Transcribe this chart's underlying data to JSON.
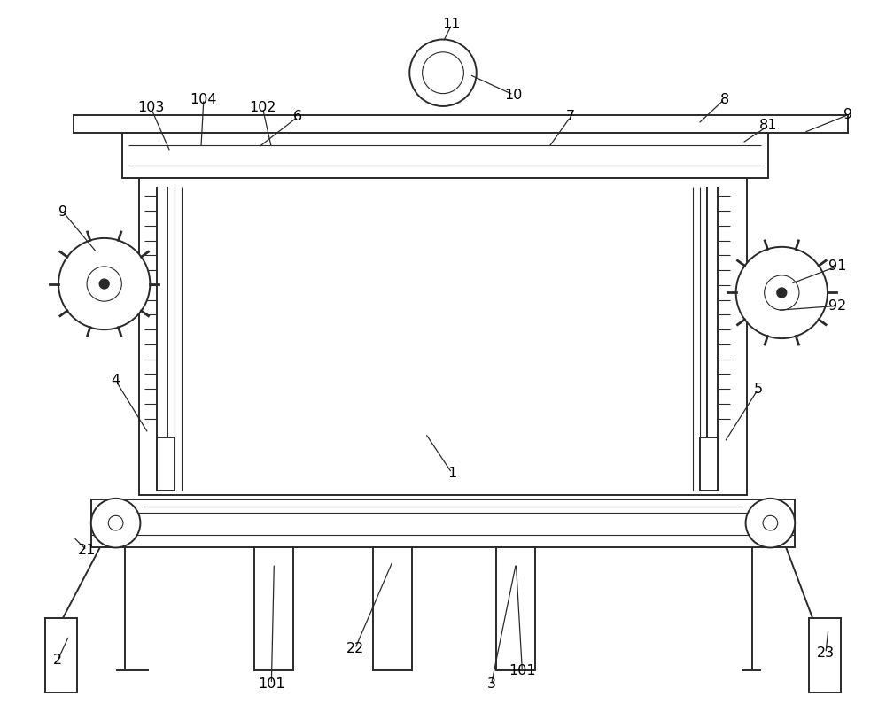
{
  "figsize": [
    10.0,
    7.95
  ],
  "dpi": 100,
  "line_color": "#2a2a2a",
  "light_gray": "#d0d0d0",
  "bg_color": "#f5f5f5",
  "lw": 1.4,
  "tlw": 0.8,
  "fs": 11.5
}
